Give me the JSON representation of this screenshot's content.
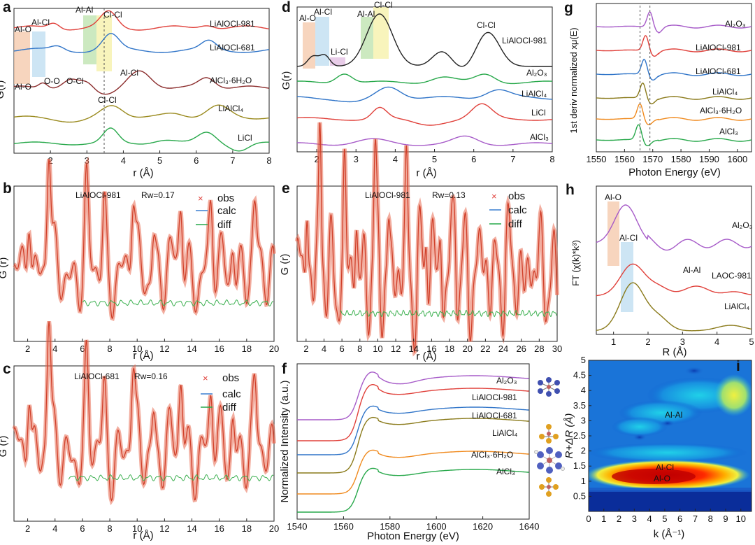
{
  "chart_data": [
    {
      "id": "a",
      "type": "line",
      "panel_label": "a",
      "xlabel": "r (Å)",
      "ylabel": "G(r)",
      "xlim": [
        1,
        8
      ],
      "xticks": [
        "2",
        "3",
        "4",
        "5",
        "6",
        "7",
        "8"
      ],
      "series": [
        "LiAlOCl-981",
        "LiAlOCl-681",
        "AlCl₃·6H₂O",
        "LiAlCl₄",
        "LiCl"
      ],
      "series_colors": [
        "#e0403a",
        "#2f74c8",
        "#8b2c2c",
        "#9a8a1e",
        "#27a84a"
      ],
      "dashed_line_x": 3.8,
      "bands": [
        {
          "label": "Al-O",
          "x0": 1.75,
          "x1": 2.0,
          "color": "#f4c7a8"
        },
        {
          "label": "Al-Cl",
          "x0": 2.0,
          "x1": 2.25,
          "color": "#bcdcf0"
        },
        {
          "label": "Al-Al",
          "x0": 3.3,
          "x1": 3.55,
          "color": "#bfe3b0"
        },
        {
          "label": "Cl-Cl",
          "x0": 3.55,
          "x1": 3.85,
          "color": "#f7f2b0"
        }
      ],
      "annotations": [
        "Al-O",
        "Al-Cl",
        "Al-Al",
        "Cl-Cl",
        "Al-O",
        "O-O",
        "O-Cl",
        "Al-Cl",
        "Cl-Cl"
      ]
    },
    {
      "id": "b",
      "type": "scatter",
      "panel_label": "b",
      "xlabel": "r (Å)",
      "ylabel": "G (r)",
      "xlim": [
        1,
        20
      ],
      "xticks": [
        "2",
        "4",
        "6",
        "8",
        "10",
        "12",
        "14",
        "16",
        "18",
        "20"
      ],
      "sample": "LiAlOCl-981",
      "rw": "Rw=0.17",
      "legend": [
        "obs",
        "calc",
        "diff"
      ]
    },
    {
      "id": "c",
      "type": "scatter",
      "panel_label": "c",
      "xlabel": "r (Å)",
      "ylabel": "G (r)",
      "xlim": [
        1,
        20
      ],
      "xticks": [
        "2",
        "4",
        "6",
        "8",
        "10",
        "12",
        "14",
        "16",
        "18",
        "20"
      ],
      "sample": "LiAlOCl-681",
      "rw": "Rw=0.16",
      "legend": [
        "obs",
        "calc",
        "diff"
      ]
    },
    {
      "id": "d",
      "type": "line",
      "panel_label": "d",
      "xlabel": "r (Å)",
      "ylabel": "G(r)",
      "xlim": [
        1.5,
        8
      ],
      "xticks": [
        "2",
        "3",
        "4",
        "5",
        "6",
        "7",
        "8"
      ],
      "series": [
        "LiAlOCl-981",
        "Al₂O₃",
        "LiAlCl₄",
        "LiCl",
        "AlCl₃"
      ],
      "series_colors": [
        "#222222",
        "#27a84a",
        "#2f74c8",
        "#e0403a",
        "#a65ac8"
      ],
      "bands": [
        {
          "label": "Al-O",
          "x0": 1.75,
          "x1": 2.0,
          "color": "#f4c7a8"
        },
        {
          "label": "Al-Cl",
          "x0": 2.0,
          "x1": 2.3,
          "color": "#bcdcf0"
        },
        {
          "label": "Li-Cl",
          "x0": 2.3,
          "x1": 2.7,
          "color": "#e6c6e6"
        },
        {
          "label": "Al-Al",
          "x0": 3.2,
          "x1": 3.5,
          "color": "#bfe3b0"
        },
        {
          "label": "Cl-Cl",
          "x0": 3.5,
          "x1": 3.85,
          "color": "#f7f2b0"
        }
      ],
      "annotations": [
        "Al-O",
        "Al-Cl",
        "Li-Cl",
        "Al-Al",
        "Cl-Cl",
        "Cl-Cl"
      ]
    },
    {
      "id": "e",
      "type": "scatter",
      "panel_label": "e",
      "xlabel": "r (Å)",
      "ylabel": "G (r)",
      "xlim": [
        1,
        30
      ],
      "xticks": [
        "2",
        "4",
        "6",
        "8",
        "10",
        "12",
        "14",
        "16",
        "18",
        "20",
        "22",
        "24",
        "26",
        "28",
        "30"
      ],
      "sample": "LiAlOCl-981",
      "rw": "Rw=0.13",
      "legend": [
        "obs",
        "calc",
        "diff"
      ]
    },
    {
      "id": "f",
      "type": "line",
      "panel_label": "f",
      "xlabel": "Photon Energy (eV)",
      "ylabel": "Normalized Intensity (a.u.)",
      "xlim": [
        1540,
        1640
      ],
      "xticks": [
        "1540",
        "1560",
        "1580",
        "1600",
        "1620",
        "1640"
      ],
      "series": [
        "Al₂O₃",
        "LiAlOCl-981",
        "LiAlOCl-681",
        "LiAlCl₄",
        "AlCl₃·6H₂O",
        "AlCl₃"
      ],
      "series_colors": [
        "#a65ac8",
        "#e0403a",
        "#2f74c8",
        "#8a7a1a",
        "#f08a1e",
        "#27a84a"
      ]
    },
    {
      "id": "g",
      "type": "line",
      "panel_label": "g",
      "xlabel": "Photon Energy (eV)",
      "ylabel": "1st deriv normalized xμ(E)",
      "xlim": [
        1550,
        1605
      ],
      "xticks": [
        "1550",
        "1560",
        "1570",
        "1580",
        "1590",
        "1600"
      ],
      "series": [
        "Al₂O₃",
        "LiAlOCl-981",
        "LiAlOCl-681",
        "LiAlCl₄",
        "AlCl₃·6H₂O",
        "AlCl₃"
      ],
      "series_colors": [
        "#a65ac8",
        "#e0403a",
        "#2f74c8",
        "#8a7a1a",
        "#f08a1e",
        "#27a84a"
      ],
      "dashed_lines_x": [
        1565.5,
        1569
      ]
    },
    {
      "id": "h",
      "type": "line",
      "panel_label": "h",
      "xlabel": "R (Å)",
      "ylabel": "FT (χ(k)*k³)",
      "xlim": [
        0.5,
        5
      ],
      "xticks": [
        "1",
        "2",
        "3",
        "4",
        "5"
      ],
      "series": [
        "Al₂O₃",
        "LAOC-981",
        "LiAlCl₄"
      ],
      "series_colors": [
        "#a65ac8",
        "#e0403a",
        "#8a7a1a"
      ],
      "annotations": [
        "Al-O",
        "Al-Cl",
        "Al-Al"
      ]
    },
    {
      "id": "i",
      "type": "heatmap",
      "panel_label": "i",
      "xlabel": "k (Å⁻¹)",
      "ylabel": "R+ΔR (Å)",
      "xlim": [
        0,
        10.7
      ],
      "ylim": [
        0,
        5
      ],
      "xticks": [
        "0",
        "1",
        "2",
        "3",
        "4",
        "5",
        "6",
        "7",
        "8",
        "9",
        "10"
      ],
      "yticks": [
        "0.5",
        "1",
        "1.5",
        "2",
        "2.5",
        "3",
        "3.5",
        "4",
        "4.5",
        "5"
      ],
      "annotations": [
        "Al-Al",
        "Al-Cl",
        "Al-O"
      ]
    }
  ]
}
